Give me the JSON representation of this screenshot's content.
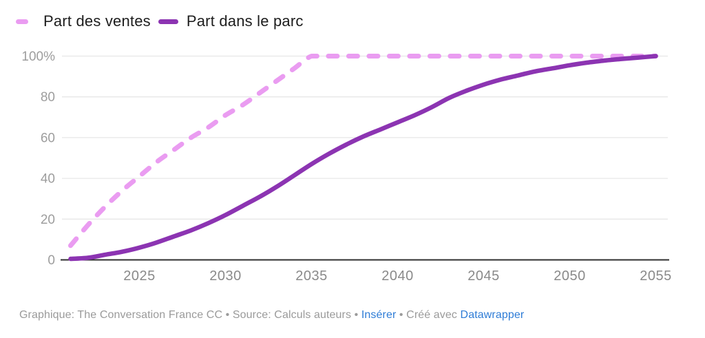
{
  "colors": {
    "ventes_pink": "#ea9cf1",
    "parc_purple": "#8c34b2",
    "grid": "#e7e7e7",
    "axis": "#2f2f2f",
    "y_tick_text": "#9d9d9d",
    "x_tick_text": "#8a8a8a",
    "legend_text": "#1d1d1d",
    "footer_text": "#9a9a9a",
    "footer_link": "#2e7cd6",
    "background": "#ffffff"
  },
  "chart_data": {
    "type": "line",
    "title": "",
    "xlabel": "",
    "ylabel": "",
    "grid": "horizontal",
    "legend_position": "top-left",
    "ylim": [
      0,
      100
    ],
    "xlim": [
      2020.5,
      2055.7
    ],
    "x": [
      2021,
      2022,
      2023,
      2024,
      2025,
      2026,
      2027,
      2028,
      2029,
      2030,
      2031,
      2032,
      2033,
      2034,
      2035,
      2036,
      2037,
      2038,
      2039,
      2040,
      2041,
      2042,
      2043,
      2044,
      2045,
      2046,
      2047,
      2048,
      2049,
      2050,
      2051,
      2052,
      2053,
      2054,
      2055
    ],
    "series": [
      {
        "name": "Part des ventes",
        "style": "dashed",
        "color": "#ea9cf1",
        "values": [
          7,
          17,
          26,
          34,
          41,
          48,
          54,
          60,
          65,
          71,
          76,
          82,
          88,
          94,
          100,
          100,
          100,
          100,
          100,
          100,
          100,
          100,
          100,
          100,
          100,
          100,
          100,
          100,
          100,
          100,
          100,
          100,
          100,
          100,
          100
        ]
      },
      {
        "name": "Part dans le parc",
        "style": "solid",
        "color": "#8c34b2",
        "values": [
          0.5,
          1,
          2.5,
          4,
          6,
          8.5,
          11.5,
          14.5,
          18,
          22,
          26.5,
          31,
          36,
          41.5,
          47,
          52,
          56.5,
          60.5,
          64,
          67.5,
          71,
          75,
          79.5,
          83,
          86,
          88.5,
          90.5,
          92.5,
          94,
          95.5,
          96.8,
          97.8,
          98.6,
          99.3,
          100
        ]
      }
    ],
    "y_ticks": [
      {
        "value": 0,
        "label": "0"
      },
      {
        "value": 20,
        "label": "20"
      },
      {
        "value": 40,
        "label": "40"
      },
      {
        "value": 60,
        "label": "60"
      },
      {
        "value": 80,
        "label": "80"
      },
      {
        "value": 100,
        "label": "100%"
      }
    ],
    "x_ticks": [
      {
        "value": 2025,
        "label": "2025"
      },
      {
        "value": 2030,
        "label": "2030"
      },
      {
        "value": 2035,
        "label": "2035"
      },
      {
        "value": 2040,
        "label": "2040"
      },
      {
        "value": 2045,
        "label": "2045"
      },
      {
        "value": 2050,
        "label": "2050"
      },
      {
        "value": 2055,
        "label": "2055"
      }
    ]
  },
  "footer": {
    "byline": "Graphique: The Conversation France CC",
    "sep": "•",
    "source": "Source: Calculs auteurs",
    "embed_link": "Insérer",
    "created_with": "Créé avec",
    "datawrapper_link": "Datawrapper"
  }
}
